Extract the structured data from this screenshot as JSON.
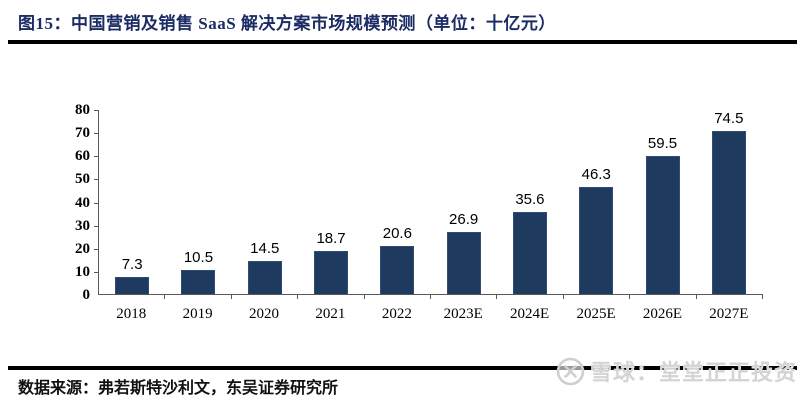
{
  "figure": {
    "title": "图15：中国营销及销售 SaaS 解决方案市场规模预测（单位：十亿元）"
  },
  "chart_data": {
    "type": "bar",
    "title": "中国营销及销售SaaS解决方案市场规模预测",
    "unit": "十亿元",
    "categories": [
      "2018",
      "2019",
      "2020",
      "2021",
      "2022",
      "2023E",
      "2024E",
      "2025E",
      "2026E",
      "2027E"
    ],
    "values": [
      7.3,
      10.5,
      14.5,
      18.7,
      20.6,
      26.9,
      35.6,
      46.3,
      59.5,
      74.5
    ],
    "value_labels": [
      "7.3",
      "10.5",
      "14.5",
      "18.7",
      "20.6",
      "26.9",
      "35.6",
      "46.3",
      "59.5",
      "74.5"
    ],
    "xlabel": "",
    "ylabel": "",
    "ylim": [
      0,
      80
    ],
    "yticks": [
      0,
      10,
      20,
      30,
      40,
      50,
      60,
      70,
      80
    ],
    "grid": false,
    "legend": "none",
    "bar_color": "#1e3a5f"
  },
  "footer": {
    "source": "数据来源：弗若斯特沙利文，东吴证券研究所"
  },
  "watermark": {
    "logo": "xueqiu-circle-x-icon",
    "text": "雪球：堂堂正正投资"
  },
  "colors": {
    "title_navy": "#1b2b63",
    "bar_navy": "#1e3a5f",
    "axis_gray": "#595959",
    "rule_black": "#000000",
    "watermark_gray": "#d4d4d4"
  }
}
